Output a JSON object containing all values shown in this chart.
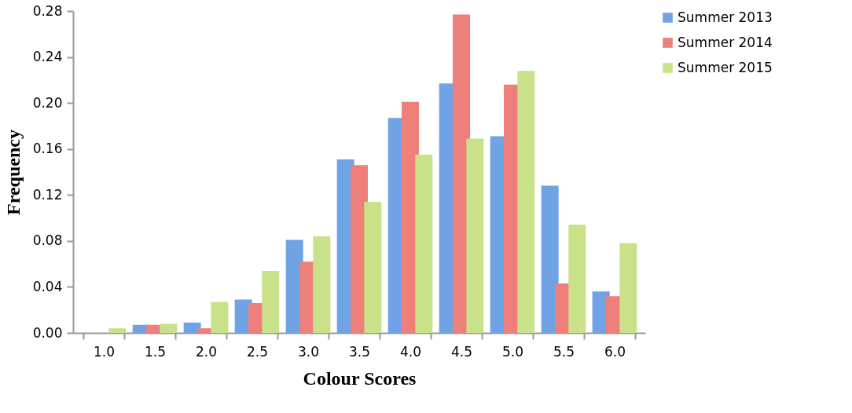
{
  "chart_data": {
    "type": "bar",
    "xlabel": "Colour Scores",
    "ylabel": "Frequency",
    "categories": [
      "1.0",
      "1.5",
      "2.0",
      "2.5",
      "3.0",
      "3.5",
      "4.0",
      "4.5",
      "5.0",
      "5.5",
      "6.0"
    ],
    "series": [
      {
        "name": "Summer 2013",
        "color": "#6fa3e6",
        "values": [
          0,
          0.007,
          0.009,
          0.029,
          0.081,
          0.151,
          0.187,
          0.217,
          0.171,
          0.128,
          0.036
        ]
      },
      {
        "name": "Summer 2014",
        "color": "#ee7f7a",
        "values": [
          0,
          0.007,
          0.004,
          0.026,
          0.062,
          0.146,
          0.201,
          0.277,
          0.216,
          0.043,
          0.032
        ]
      },
      {
        "name": "Summer 2015",
        "color": "#c9e28a",
        "values": [
          0.004,
          0.008,
          0.027,
          0.054,
          0.084,
          0.114,
          0.155,
          0.169,
          0.228,
          0.094,
          0.078
        ]
      }
    ],
    "ylim": [
      0,
      0.28
    ],
    "yticks": [
      {
        "value": 0,
        "label": "0.00"
      },
      {
        "value": 0.04,
        "label": "0.04"
      },
      {
        "value": 0.08,
        "label": "0.08"
      },
      {
        "value": 0.12,
        "label": "0.12"
      },
      {
        "value": 0.16,
        "label": "0.16"
      },
      {
        "value": 0.2,
        "label": "0.20"
      },
      {
        "value": 0.24,
        "label": "0.24"
      },
      {
        "value": 0.28,
        "label": "0.28"
      }
    ],
    "grid": false,
    "legend": "right"
  }
}
